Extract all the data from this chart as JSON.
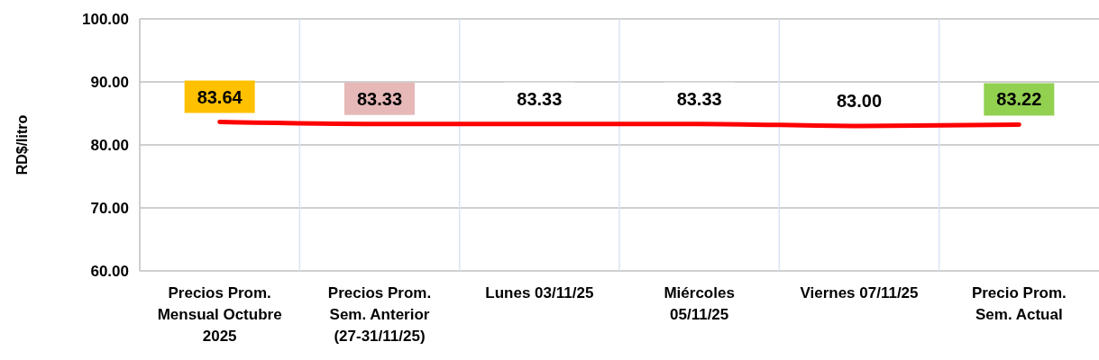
{
  "chart_data": {
    "type": "line",
    "ylabel": "RD$/litro",
    "categories": [
      "Precios Prom. Mensual Octubre 2025",
      "Precios Prom. Sem. Anterior (27-31/11/25)",
      "Lunes 03/11/25",
      "Miércoles 05/11/25",
      "Viernes 07/11/25",
      "Precio Prom. Sem. Actual"
    ],
    "series": [
      {
        "color": "#ff0000",
        "values": [
          83.64,
          83.33,
          83.33,
          83.33,
          83.0,
          83.22
        ],
        "value_labels": [
          "83.64",
          "83.33",
          "83.33",
          "83.33",
          "83.00",
          "83.22"
        ]
      }
    ],
    "ylim": [
      60,
      100
    ],
    "yticks": [
      {
        "value": 60,
        "label": "60.00"
      },
      {
        "value": 70,
        "label": "70.00"
      },
      {
        "value": 80,
        "label": "80.00"
      },
      {
        "value": 90,
        "label": "90.00"
      },
      {
        "value": 100,
        "label": "100.00"
      }
    ],
    "grid": true,
    "marker": "none"
  }
}
